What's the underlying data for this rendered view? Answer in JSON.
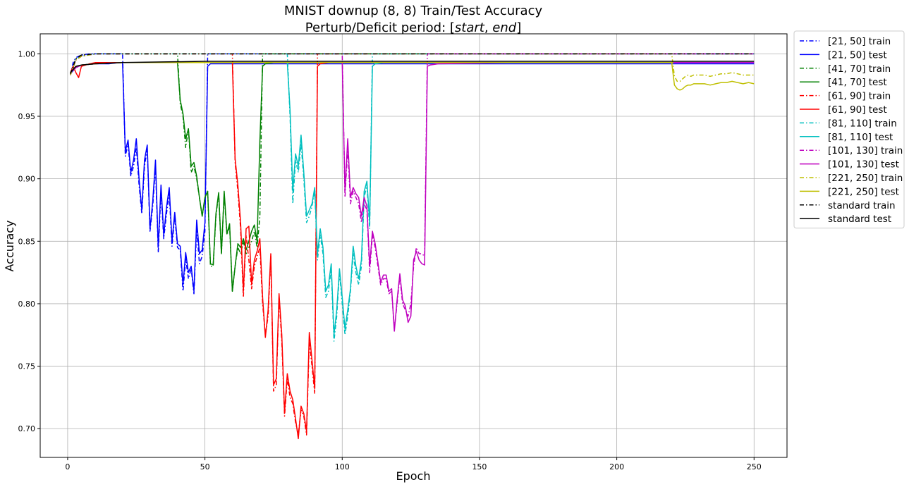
{
  "chart_data": {
    "type": "line",
    "title_line1": "MNIST downup (8, 8) Train/Test Accuracy",
    "title_line2_prefix": "Perturb/Deficit period: [",
    "title_line2_start": "start",
    "title_line2_sep": ", ",
    "title_line2_end": "end",
    "title_line2_suffix": "]",
    "xlabel": "Epoch",
    "ylabel": "Accuracy",
    "xlim": [
      -10,
      262
    ],
    "ylim": [
      0.677,
      1.016
    ],
    "xticks": [
      0,
      50,
      100,
      150,
      200,
      250
    ],
    "xtick_labels": [
      "0",
      "50",
      "100",
      "150",
      "200",
      "250"
    ],
    "yticks": [
      0.7,
      0.75,
      0.8,
      0.85,
      0.9,
      0.95,
      1.0
    ],
    "ytick_labels": [
      "0.70",
      "0.75",
      "0.80",
      "0.85",
      "0.90",
      "0.95",
      "1.00"
    ],
    "grid": true,
    "legend_position": "outside-right-top",
    "series": [
      {
        "name": "[21, 50] train",
        "color": "#0000ff",
        "dash": "dashdot",
        "x": [
          1,
          2,
          3,
          5,
          8,
          12,
          15,
          18,
          19,
          20,
          21,
          22,
          23,
          24,
          25,
          26,
          27,
          28,
          29,
          30,
          31,
          32,
          33,
          34,
          35,
          36,
          37,
          38,
          39,
          40,
          41,
          42,
          43,
          44,
          45,
          46,
          47,
          48,
          49,
          50,
          51,
          52,
          55,
          60,
          80,
          120,
          180,
          250
        ],
        "y": [
          0.983,
          0.993,
          0.997,
          0.999,
          1.0,
          1.0,
          1.0,
          1.0,
          1.0,
          1.0,
          0.918,
          0.928,
          0.902,
          0.91,
          0.925,
          0.895,
          0.872,
          0.91,
          0.924,
          0.858,
          0.878,
          0.91,
          0.841,
          0.89,
          0.852,
          0.872,
          0.888,
          0.846,
          0.87,
          0.845,
          0.843,
          0.81,
          0.836,
          0.82,
          0.828,
          0.808,
          0.86,
          0.832,
          0.838,
          0.858,
          1.0,
          1.0,
          1.0,
          1.0,
          1.0,
          1.0,
          1.0,
          1.0
        ]
      },
      {
        "name": "[21, 50] test",
        "color": "#0000ff",
        "dash": "solid",
        "x": [
          1,
          3,
          5,
          10,
          15,
          19,
          20,
          21,
          22,
          23,
          24,
          25,
          26,
          27,
          28,
          29,
          30,
          31,
          32,
          33,
          34,
          35,
          36,
          37,
          38,
          39,
          40,
          41,
          42,
          43,
          44,
          45,
          46,
          47,
          48,
          49,
          50,
          51,
          52,
          55,
          60,
          80,
          120,
          180,
          250
        ],
        "y": [
          0.984,
          0.989,
          0.991,
          0.992,
          0.992,
          0.993,
          0.993,
          0.922,
          0.931,
          0.905,
          0.915,
          0.932,
          0.9,
          0.875,
          0.915,
          0.927,
          0.86,
          0.882,
          0.915,
          0.845,
          0.895,
          0.855,
          0.877,
          0.893,
          0.85,
          0.873,
          0.848,
          0.846,
          0.815,
          0.841,
          0.825,
          0.83,
          0.81,
          0.867,
          0.84,
          0.843,
          0.865,
          0.99,
          0.992,
          0.992,
          0.992,
          0.992,
          0.992,
          0.992,
          0.992
        ]
      },
      {
        "name": "[41, 70] train",
        "color": "#008000",
        "dash": "dashdot",
        "x": [
          1,
          3,
          5,
          10,
          20,
          30,
          39,
          40,
          41,
          42,
          43,
          44,
          45,
          46,
          47,
          48,
          49,
          50,
          51,
          52,
          53,
          54,
          55,
          56,
          57,
          58,
          59,
          60,
          61,
          62,
          63,
          64,
          65,
          66,
          67,
          68,
          69,
          70,
          71,
          72,
          75,
          90,
          150,
          250
        ],
        "y": [
          0.984,
          0.996,
          0.999,
          1.0,
          1.0,
          1.0,
          1.0,
          1.0,
          0.96,
          0.95,
          0.925,
          0.94,
          0.905,
          0.91,
          0.9,
          0.885,
          0.87,
          0.885,
          0.89,
          0.83,
          0.83,
          0.87,
          0.888,
          0.84,
          0.888,
          0.855,
          0.862,
          0.81,
          0.83,
          0.845,
          0.84,
          0.85,
          0.84,
          0.845,
          0.85,
          0.858,
          0.845,
          0.87,
          1.0,
          1.0,
          1.0,
          1.0,
          1.0,
          1.0
        ]
      },
      {
        "name": "[41, 70] test",
        "color": "#008000",
        "dash": "solid",
        "x": [
          1,
          3,
          5,
          10,
          20,
          30,
          39,
          40,
          41,
          42,
          43,
          44,
          45,
          46,
          47,
          48,
          49,
          50,
          51,
          52,
          53,
          54,
          55,
          56,
          57,
          58,
          59,
          60,
          61,
          62,
          63,
          64,
          65,
          66,
          67,
          68,
          69,
          70,
          71,
          72,
          75,
          90,
          150,
          250
        ],
        "y": [
          0.985,
          0.99,
          0.991,
          0.992,
          0.993,
          0.993,
          0.993,
          0.993,
          0.963,
          0.952,
          0.932,
          0.94,
          0.91,
          0.913,
          0.902,
          0.885,
          0.87,
          0.885,
          0.89,
          0.832,
          0.831,
          0.872,
          0.889,
          0.84,
          0.89,
          0.856,
          0.864,
          0.81,
          0.83,
          0.848,
          0.845,
          0.852,
          0.843,
          0.85,
          0.858,
          0.863,
          0.85,
          0.93,
          0.99,
          0.992,
          0.993,
          0.993,
          0.993,
          0.993
        ]
      },
      {
        "name": "[61, 90] train",
        "color": "#ff0000",
        "dash": "dashdot",
        "x": [
          1,
          3,
          5,
          10,
          20,
          40,
          59,
          60,
          61,
          62,
          63,
          64,
          65,
          66,
          67,
          68,
          69,
          70,
          71,
          72,
          73,
          74,
          75,
          76,
          77,
          78,
          79,
          80,
          81,
          82,
          83,
          84,
          85,
          86,
          87,
          88,
          89,
          90,
          91,
          92,
          95,
          120,
          180,
          250
        ],
        "y": [
          0.983,
          0.995,
          0.998,
          1.0,
          1.0,
          1.0,
          1.0,
          1.0,
          0.913,
          0.89,
          0.86,
          0.805,
          0.855,
          0.835,
          0.812,
          0.83,
          0.838,
          0.845,
          0.8,
          0.775,
          0.79,
          0.838,
          0.73,
          0.735,
          0.805,
          0.77,
          0.71,
          0.74,
          0.725,
          0.72,
          0.705,
          0.695,
          0.715,
          0.71,
          0.695,
          0.77,
          0.75,
          0.728,
          1.0,
          1.0,
          1.0,
          1.0,
          1.0,
          1.0
        ]
      },
      {
        "name": "[61, 90] test",
        "color": "#ff0000",
        "dash": "solid",
        "x": [
          1,
          2,
          3,
          4,
          5,
          8,
          10,
          20,
          40,
          59,
          60,
          61,
          62,
          63,
          64,
          65,
          66,
          67,
          68,
          69,
          70,
          71,
          72,
          73,
          74,
          75,
          76,
          77,
          78,
          79,
          80,
          81,
          82,
          83,
          84,
          85,
          86,
          87,
          88,
          89,
          90,
          91,
          92,
          95,
          120,
          180,
          250
        ],
        "y": [
          0.985,
          0.99,
          0.985,
          0.981,
          0.99,
          0.992,
          0.993,
          0.993,
          0.993,
          0.993,
          0.993,
          0.916,
          0.895,
          0.865,
          0.81,
          0.86,
          0.862,
          0.815,
          0.835,
          0.842,
          0.852,
          0.805,
          0.773,
          0.795,
          0.84,
          0.735,
          0.74,
          0.808,
          0.775,
          0.713,
          0.744,
          0.73,
          0.723,
          0.708,
          0.692,
          0.718,
          0.712,
          0.698,
          0.777,
          0.755,
          0.732,
          0.99,
          0.992,
          0.993,
          0.993,
          0.993,
          0.993
        ]
      },
      {
        "name": "[81, 110] train",
        "color": "#00bfbf",
        "dash": "dashdot",
        "x": [
          1,
          3,
          5,
          10,
          20,
          40,
          60,
          79,
          80,
          81,
          82,
          83,
          84,
          85,
          86,
          87,
          88,
          89,
          90,
          91,
          92,
          93,
          94,
          95,
          96,
          97,
          98,
          99,
          100,
          101,
          102,
          103,
          104,
          105,
          106,
          107,
          108,
          109,
          110,
          111,
          112,
          115,
          150,
          250
        ],
        "y": [
          0.983,
          0.996,
          0.998,
          1.0,
          1.0,
          1.0,
          1.0,
          1.0,
          1.0,
          0.95,
          0.88,
          0.915,
          0.905,
          0.928,
          0.9,
          0.865,
          0.87,
          0.878,
          0.89,
          0.835,
          0.855,
          0.84,
          0.805,
          0.81,
          0.828,
          0.77,
          0.79,
          0.825,
          0.8,
          0.775,
          0.79,
          0.81,
          0.84,
          0.825,
          0.815,
          0.83,
          0.885,
          0.895,
          0.86,
          1.0,
          1.0,
          1.0,
          1.0,
          1.0
        ]
      },
      {
        "name": "[81, 110] test",
        "color": "#00bfbf",
        "dash": "solid",
        "x": [
          1,
          3,
          5,
          10,
          20,
          40,
          60,
          79,
          80,
          81,
          82,
          83,
          84,
          85,
          86,
          87,
          88,
          89,
          90,
          91,
          92,
          93,
          94,
          95,
          96,
          97,
          98,
          99,
          100,
          101,
          102,
          103,
          104,
          105,
          106,
          107,
          108,
          109,
          110,
          111,
          112,
          115,
          150,
          250
        ],
        "y": [
          0.985,
          0.99,
          0.991,
          0.992,
          0.993,
          0.993,
          0.993,
          0.993,
          0.993,
          0.955,
          0.89,
          0.92,
          0.91,
          0.935,
          0.905,
          0.87,
          0.875,
          0.88,
          0.893,
          0.84,
          0.86,
          0.845,
          0.81,
          0.815,
          0.832,
          0.775,
          0.795,
          0.828,
          0.805,
          0.78,
          0.795,
          0.812,
          0.846,
          0.83,
          0.82,
          0.835,
          0.89,
          0.898,
          0.865,
          0.99,
          0.992,
          0.993,
          0.993,
          0.993
        ]
      },
      {
        "name": "[101, 130] train",
        "color": "#bf00bf",
        "dash": "dashdot",
        "x": [
          1,
          3,
          5,
          10,
          20,
          40,
          60,
          80,
          99,
          100,
          101,
          102,
          103,
          104,
          105,
          106,
          107,
          108,
          109,
          110,
          111,
          112,
          113,
          114,
          115,
          116,
          117,
          118,
          119,
          120,
          121,
          122,
          123,
          124,
          125,
          126,
          127,
          128,
          129,
          130,
          131,
          132,
          135,
          160,
          250
        ],
        "y": [
          0.983,
          0.995,
          0.998,
          1.0,
          1.0,
          1.0,
          1.0,
          1.0,
          1.0,
          1.0,
          0.885,
          0.925,
          0.88,
          0.89,
          0.885,
          0.88,
          0.865,
          0.88,
          0.875,
          0.825,
          0.855,
          0.845,
          0.83,
          0.815,
          0.82,
          0.82,
          0.808,
          0.81,
          0.78,
          0.8,
          0.822,
          0.8,
          0.795,
          0.79,
          0.8,
          0.83,
          0.845,
          0.84,
          0.84,
          0.838,
          1.0,
          1.0,
          1.0,
          1.0,
          1.0
        ]
      },
      {
        "name": "[101, 130] test",
        "color": "#bf00bf",
        "dash": "solid",
        "x": [
          1,
          3,
          5,
          10,
          20,
          40,
          60,
          80,
          99,
          100,
          101,
          102,
          103,
          104,
          105,
          106,
          107,
          108,
          109,
          110,
          111,
          112,
          113,
          114,
          115,
          116,
          117,
          118,
          119,
          120,
          121,
          122,
          123,
          124,
          125,
          126,
          127,
          128,
          129,
          130,
          131,
          132,
          135,
          160,
          250
        ],
        "y": [
          0.985,
          0.989,
          0.991,
          0.992,
          0.993,
          0.993,
          0.993,
          0.993,
          0.993,
          0.993,
          0.89,
          0.932,
          0.885,
          0.893,
          0.888,
          0.885,
          0.87,
          0.885,
          0.878,
          0.83,
          0.858,
          0.848,
          0.833,
          0.817,
          0.823,
          0.823,
          0.81,
          0.812,
          0.778,
          0.803,
          0.824,
          0.803,
          0.798,
          0.785,
          0.79,
          0.835,
          0.842,
          0.835,
          0.832,
          0.831,
          0.99,
          0.991,
          0.992,
          0.993,
          0.993
        ]
      },
      {
        "name": "[221, 250] train",
        "color": "#bfbf00",
        "dash": "dashdot",
        "x": [
          1,
          3,
          5,
          10,
          20,
          50,
          100,
          150,
          200,
          219,
          220,
          221,
          222,
          223,
          224,
          225,
          226,
          227,
          228,
          230,
          232,
          234,
          236,
          238,
          240,
          242,
          244,
          246,
          248,
          250
        ],
        "y": [
          0.983,
          0.995,
          0.998,
          1.0,
          1.0,
          1.0,
          1.0,
          1.0,
          1.0,
          1.0,
          1.0,
          0.982,
          0.978,
          0.978,
          0.98,
          0.982,
          0.983,
          0.982,
          0.983,
          0.983,
          0.983,
          0.982,
          0.983,
          0.984,
          0.984,
          0.985,
          0.984,
          0.983,
          0.983,
          0.983
        ]
      },
      {
        "name": "[221, 250] test",
        "color": "#bfbf00",
        "dash": "solid",
        "x": [
          1,
          3,
          5,
          10,
          20,
          50,
          100,
          150,
          200,
          219,
          220,
          221,
          222,
          223,
          224,
          225,
          226,
          227,
          228,
          230,
          232,
          234,
          236,
          238,
          240,
          242,
          244,
          246,
          248,
          250
        ],
        "y": [
          0.985,
          0.99,
          0.991,
          0.992,
          0.993,
          0.993,
          0.993,
          0.993,
          0.993,
          0.993,
          0.993,
          0.975,
          0.972,
          0.971,
          0.972,
          0.974,
          0.975,
          0.975,
          0.976,
          0.976,
          0.976,
          0.975,
          0.976,
          0.977,
          0.977,
          0.978,
          0.977,
          0.976,
          0.977,
          0.976
        ]
      },
      {
        "name": "standard train",
        "color": "#000000",
        "dash": "dashdot",
        "x": [
          1,
          3,
          5,
          10,
          20,
          50,
          100,
          150,
          200,
          250
        ],
        "y": [
          0.984,
          0.996,
          0.999,
          1.0,
          1.0,
          1.0,
          1.0,
          1.0,
          1.0,
          1.0
        ]
      },
      {
        "name": "standard test",
        "color": "#000000",
        "dash": "solid",
        "x": [
          1,
          3,
          5,
          10,
          20,
          50,
          100,
          150,
          200,
          250
        ],
        "y": [
          0.985,
          0.99,
          0.991,
          0.992,
          0.993,
          0.994,
          0.994,
          0.994,
          0.994,
          0.994
        ]
      }
    ]
  }
}
